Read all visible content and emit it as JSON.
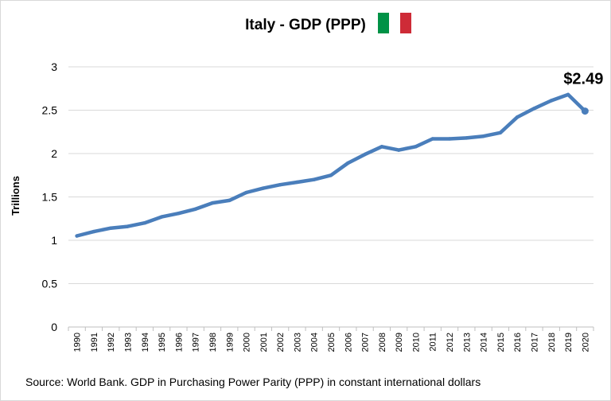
{
  "chart_data": {
    "type": "line",
    "title": "Italy - GDP (PPP)",
    "ylabel": "Trillions",
    "xlabel": "",
    "source": "Source: World Bank.  GDP in Purchasing Power Parity (PPP) in constant international dollars",
    "annotation": "$2.49",
    "ylim": [
      0,
      3
    ],
    "yticks": [
      "0",
      "0.5",
      "1",
      "1.5",
      "2",
      "2.5",
      "3"
    ],
    "x": [
      "1990",
      "1991",
      "1992",
      "1993",
      "1994",
      "1995",
      "1996",
      "1997",
      "1998",
      "1999",
      "2000",
      "2001",
      "2002",
      "2003",
      "2004",
      "2005",
      "2006",
      "2007",
      "2008",
      "2009",
      "2010",
      "2011",
      "2012",
      "2013",
      "2014",
      "2015",
      "2016",
      "2017",
      "2018",
      "2019",
      "2020"
    ],
    "series": [
      {
        "values": [
          1.05,
          1.1,
          1.14,
          1.16,
          1.2,
          1.27,
          1.31,
          1.36,
          1.43,
          1.46,
          1.55,
          1.6,
          1.64,
          1.67,
          1.7,
          1.75,
          1.89,
          1.99,
          2.08,
          2.04,
          2.08,
          2.17,
          2.17,
          2.18,
          2.2,
          2.24,
          2.42,
          2.52,
          2.61,
          2.68,
          2.49
        ],
        "color": "#4a7ebb"
      }
    ],
    "grid": true,
    "flag_colors": [
      "#009246",
      "#ffffff",
      "#ce2b37"
    ]
  }
}
